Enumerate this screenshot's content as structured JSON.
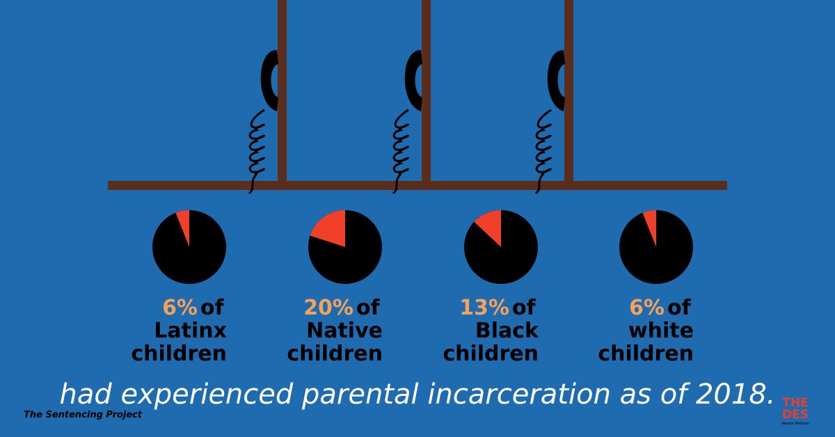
{
  "chart_data": [
    {
      "type": "pie",
      "values": [
        6
      ],
      "value_labels": [
        "6%"
      ],
      "colors": [
        "#f0402a"
      ],
      "base_color": "#000000",
      "label_lines": [
        "of",
        "Latinx",
        "children"
      ]
    },
    {
      "type": "pie",
      "values": [
        20
      ],
      "value_labels": [
        "20%"
      ],
      "colors": [
        "#f0402a"
      ],
      "base_color": "#000000",
      "label_lines": [
        "of",
        "Native",
        "children"
      ]
    },
    {
      "type": "pie",
      "values": [
        13
      ],
      "value_labels": [
        "13%"
      ],
      "colors": [
        "#f0402a"
      ],
      "base_color": "#000000",
      "label_lines": [
        "of",
        "Black",
        "children"
      ]
    },
    {
      "type": "pie",
      "values": [
        6
      ],
      "value_labels": [
        "6%"
      ],
      "colors": [
        "#f0402a"
      ],
      "base_color": "#000000",
      "label_lines": [
        "of",
        "white",
        "children"
      ]
    }
  ],
  "caption": "had experienced parental incarceration as of 2018.",
  "source": "The Sentencing Project",
  "logo": {
    "line1": "THE",
    "line2": "DES",
    "author": "Natalie Mattson"
  }
}
